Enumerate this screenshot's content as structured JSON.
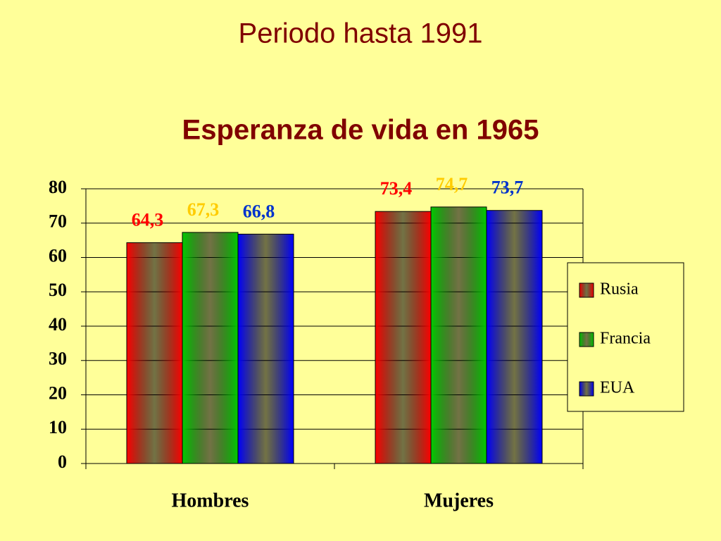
{
  "slide": {
    "title": "Periodo hasta 1991"
  },
  "chart_data": {
    "type": "bar",
    "title": "Esperanza de vida en 1965",
    "categories": [
      "Hombres",
      "Mujeres"
    ],
    "series": [
      {
        "name": "Rusia",
        "color": "#ff0000",
        "label_color": "#ff0000",
        "values": [
          64.3,
          73.4
        ],
        "value_labels": [
          "64,3",
          "73,4"
        ]
      },
      {
        "name": "Francia",
        "color": "#00cc00",
        "label_color": "#ffcc00",
        "values": [
          67.3,
          74.7
        ],
        "value_labels": [
          "67,3",
          "74,7"
        ]
      },
      {
        "name": "EUA",
        "color": "#0000ff",
        "label_color": "#0033cc",
        "values": [
          66.8,
          73.7
        ],
        "value_labels": [
          "66,8",
          "73,7"
        ]
      }
    ],
    "ylim": [
      0,
      80
    ],
    "yticks": [
      0,
      10,
      20,
      30,
      40,
      50,
      60,
      70,
      80
    ],
    "grid": true,
    "legend": "right"
  }
}
